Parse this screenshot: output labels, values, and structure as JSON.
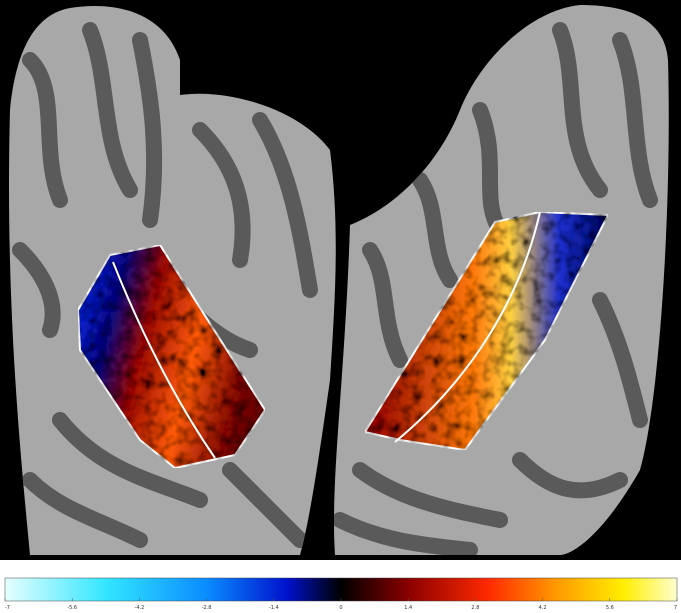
{
  "colorbar": {
    "ticks": [
      -7,
      -5.6,
      -4.2,
      -2.8,
      -1.4,
      0,
      1.4,
      2.8,
      4.2,
      5.6,
      7
    ]
  }
}
